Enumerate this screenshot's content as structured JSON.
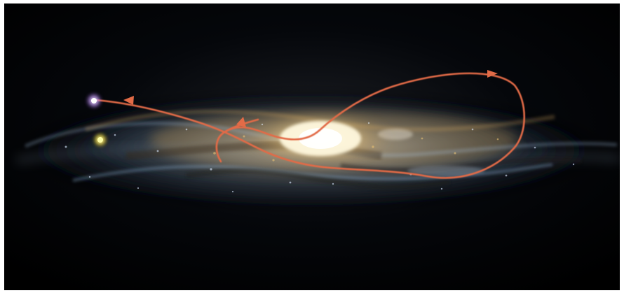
{
  "image": {
    "subject": "galaxy-orbit-illustration",
    "visible_text": ""
  },
  "colors": {
    "background": "#000000",
    "border": "#ffffff",
    "orbit": "#e26b47",
    "core": "#fff6d2",
    "disk_blue": "#a9c7e8",
    "disk_gold": "#d8b46b",
    "purple_star": "#c48cff",
    "yellow_star": "#ffe34a"
  },
  "icons": {
    "orbit_arrow": "arrowhead-icon",
    "core": "galactic-core",
    "star": "star-glow"
  }
}
